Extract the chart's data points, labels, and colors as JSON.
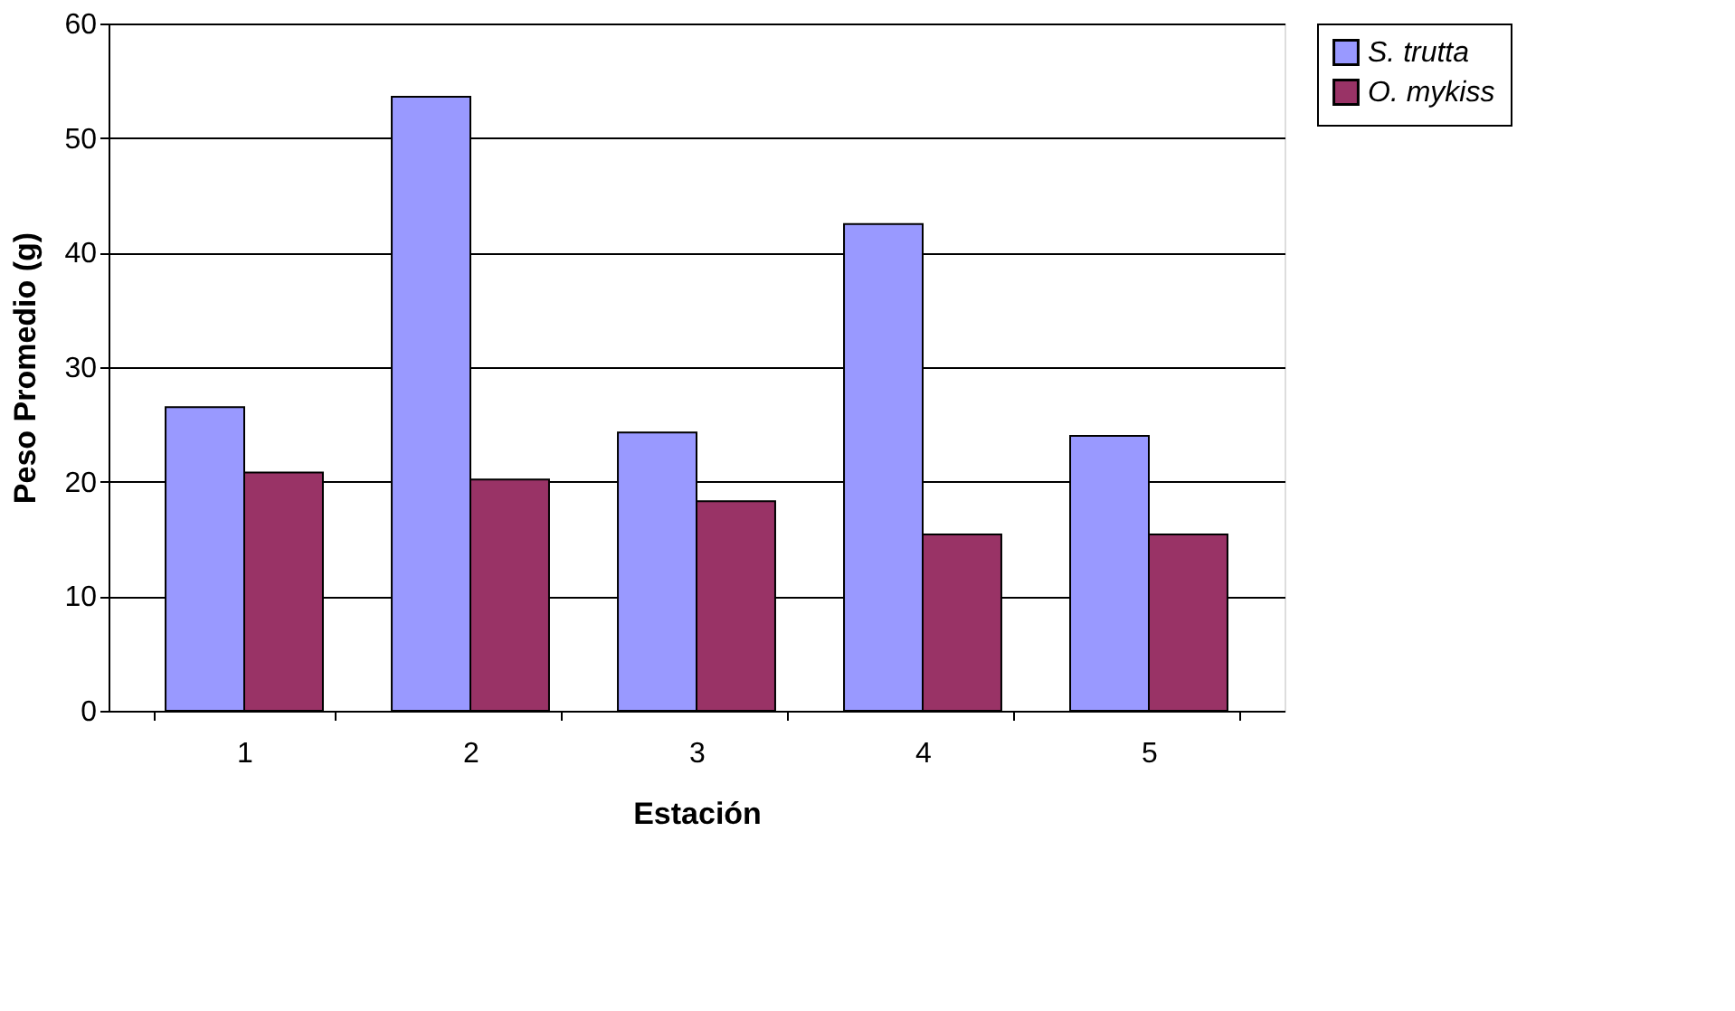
{
  "chart_data": {
    "type": "bar",
    "xlabel": "Estación",
    "ylabel": "Peso Promedio (g)",
    "categories": [
      "1",
      "2",
      "3",
      "4",
      "5"
    ],
    "series": [
      {
        "name": "S. trutta",
        "color": "#9999ff",
        "values": [
          26.5,
          53.6,
          24.3,
          42.5,
          24.0
        ]
      },
      {
        "name": "O. mykiss",
        "color": "#993366",
        "values": [
          20.8,
          20.2,
          18.3,
          15.4,
          15.4
        ]
      }
    ],
    "ylim": [
      0,
      60
    ],
    "yticks": [
      0,
      10,
      20,
      30,
      40,
      50,
      60
    ],
    "grid": "y",
    "legend": "right"
  }
}
